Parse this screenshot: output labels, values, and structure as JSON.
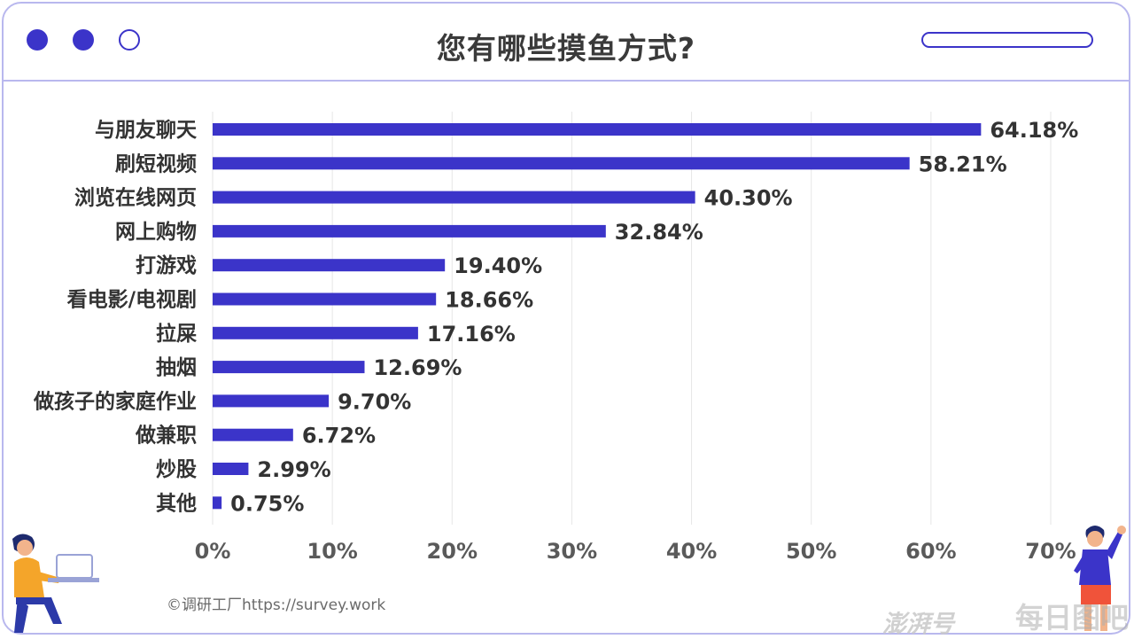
{
  "window": {
    "title": "您有哪些摸鱼方式?"
  },
  "footer": {
    "copyright": "©调研工厂https://survey.work",
    "watermark_left": "澎湃号",
    "watermark_right": "每日图吧"
  },
  "colors": {
    "bar": "#3b34c9",
    "frame": "#b9b8ee",
    "grid": "#e6e6e6"
  },
  "chart_data": {
    "type": "bar",
    "orientation": "horizontal",
    "title": "您有哪些摸鱼方式?",
    "categories": [
      "与朋友聊天",
      "刷短视频",
      "浏览在线网页",
      "网上购物",
      "打游戏",
      "看电影/电视剧",
      "拉屎",
      "抽烟",
      "做孩子的家庭作业",
      "做兼职",
      "炒股",
      "其他"
    ],
    "values": [
      64.18,
      58.21,
      40.3,
      32.84,
      19.4,
      18.66,
      17.16,
      12.69,
      9.7,
      6.72,
      2.99,
      0.75
    ],
    "value_labels": [
      "64.18%",
      "58.21%",
      "40.30%",
      "32.84%",
      "19.40%",
      "18.66%",
      "17.16%",
      "12.69%",
      "9.70%",
      "6.72%",
      "2.99%",
      "0.75%"
    ],
    "x_ticks": [
      "0%",
      "10%",
      "20%",
      "30%",
      "40%",
      "50%",
      "60%",
      "70%"
    ],
    "xlim": [
      0,
      70
    ],
    "grid": true,
    "legend": "none"
  }
}
